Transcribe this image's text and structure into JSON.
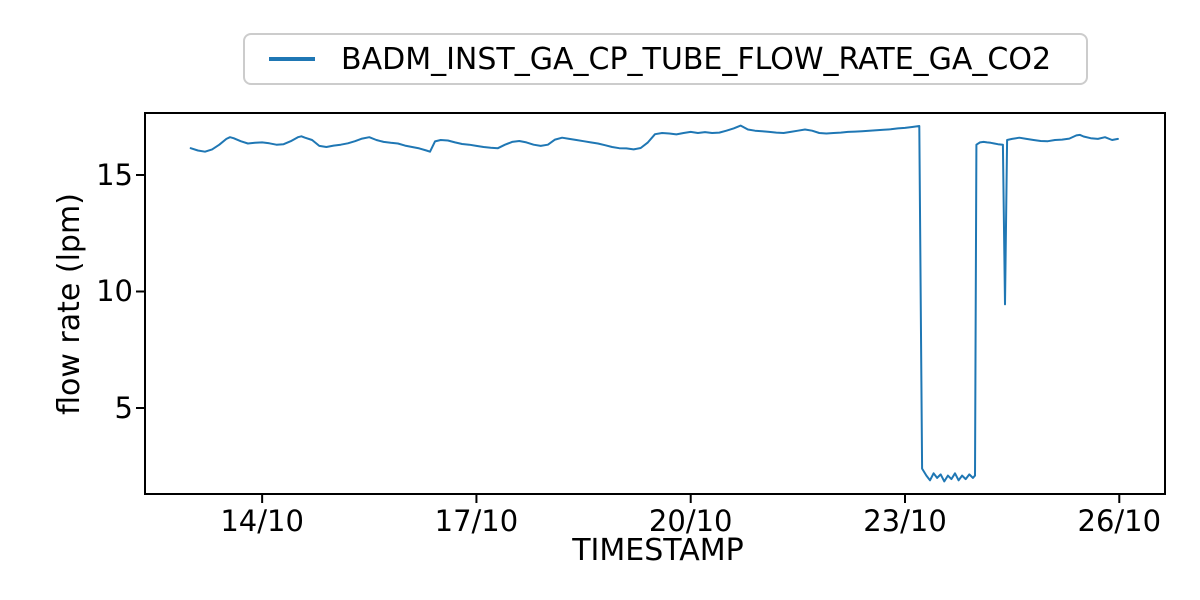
{
  "figure": {
    "background": "#ffffff",
    "legend": {
      "label": "BADM_INST_GA_CP_TUBE_FLOW_RATE_GA_CO2",
      "line_color": "#1f77b4",
      "border_color": "#cccccc",
      "position": "top-center, above plot"
    },
    "axis_color": "#000000"
  },
  "chart_data": {
    "type": "line",
    "title": "",
    "xlabel": "TIMESTAMP",
    "ylabel": "flow rate (lpm)",
    "legend_entries": [
      "BADM_INST_GA_CP_TUBE_FLOW_RATE_GA_CO2"
    ],
    "legend_position": "upper center, outside axes",
    "grid": false,
    "line_color": "#1f77b4",
    "x_unit": "day of October, labels formatted DD/10",
    "xlim_days": [
      12.36,
      26.64
    ],
    "ylim": [
      1.31,
      17.66
    ],
    "xticks": [
      {
        "day": 14,
        "label": "14/10"
      },
      {
        "day": 17,
        "label": "17/10"
      },
      {
        "day": 20,
        "label": "20/10"
      },
      {
        "day": 23,
        "label": "23/10"
      },
      {
        "day": 26,
        "label": "26/10"
      }
    ],
    "yticks": [
      {
        "value": 5,
        "label": "5"
      },
      {
        "value": 10,
        "label": "10"
      },
      {
        "value": 15,
        "label": "15"
      }
    ],
    "series": [
      {
        "name": "BADM_INST_GA_CP_TUBE_FLOW_RATE_GA_CO2",
        "points": [
          [
            13.0,
            16.15
          ],
          [
            13.1,
            16.05
          ],
          [
            13.2,
            16.0
          ],
          [
            13.3,
            16.1
          ],
          [
            13.4,
            16.3
          ],
          [
            13.5,
            16.55
          ],
          [
            13.55,
            16.62
          ],
          [
            13.6,
            16.58
          ],
          [
            13.7,
            16.45
          ],
          [
            13.8,
            16.35
          ],
          [
            13.9,
            16.38
          ],
          [
            14.0,
            16.4
          ],
          [
            14.1,
            16.36
          ],
          [
            14.2,
            16.3
          ],
          [
            14.3,
            16.32
          ],
          [
            14.4,
            16.45
          ],
          [
            14.5,
            16.62
          ],
          [
            14.55,
            16.66
          ],
          [
            14.6,
            16.6
          ],
          [
            14.7,
            16.5
          ],
          [
            14.8,
            16.25
          ],
          [
            14.9,
            16.2
          ],
          [
            15.0,
            16.26
          ],
          [
            15.1,
            16.3
          ],
          [
            15.2,
            16.36
          ],
          [
            15.3,
            16.45
          ],
          [
            15.4,
            16.56
          ],
          [
            15.5,
            16.62
          ],
          [
            15.6,
            16.5
          ],
          [
            15.7,
            16.42
          ],
          [
            15.8,
            16.38
          ],
          [
            15.9,
            16.35
          ],
          [
            16.0,
            16.26
          ],
          [
            16.1,
            16.2
          ],
          [
            16.2,
            16.14
          ],
          [
            16.3,
            16.05
          ],
          [
            16.35,
            16.0
          ],
          [
            16.42,
            16.44
          ],
          [
            16.5,
            16.5
          ],
          [
            16.6,
            16.48
          ],
          [
            16.7,
            16.4
          ],
          [
            16.8,
            16.33
          ],
          [
            16.9,
            16.3
          ],
          [
            17.0,
            16.25
          ],
          [
            17.1,
            16.2
          ],
          [
            17.2,
            16.17
          ],
          [
            17.3,
            16.15
          ],
          [
            17.4,
            16.3
          ],
          [
            17.5,
            16.42
          ],
          [
            17.6,
            16.46
          ],
          [
            17.7,
            16.4
          ],
          [
            17.8,
            16.3
          ],
          [
            17.9,
            16.25
          ],
          [
            18.0,
            16.3
          ],
          [
            18.1,
            16.52
          ],
          [
            18.2,
            16.6
          ],
          [
            18.3,
            16.55
          ],
          [
            18.4,
            16.5
          ],
          [
            18.5,
            16.45
          ],
          [
            18.6,
            16.4
          ],
          [
            18.7,
            16.35
          ],
          [
            18.8,
            16.28
          ],
          [
            18.9,
            16.2
          ],
          [
            19.0,
            16.15
          ],
          [
            19.1,
            16.14
          ],
          [
            19.2,
            16.1
          ],
          [
            19.3,
            16.16
          ],
          [
            19.4,
            16.4
          ],
          [
            19.5,
            16.75
          ],
          [
            19.6,
            16.8
          ],
          [
            19.7,
            16.78
          ],
          [
            19.8,
            16.74
          ],
          [
            19.9,
            16.8
          ],
          [
            20.0,
            16.85
          ],
          [
            20.1,
            16.8
          ],
          [
            20.2,
            16.84
          ],
          [
            20.3,
            16.8
          ],
          [
            20.4,
            16.82
          ],
          [
            20.5,
            16.9
          ],
          [
            20.6,
            17.0
          ],
          [
            20.7,
            17.12
          ],
          [
            20.8,
            16.95
          ],
          [
            20.9,
            16.9
          ],
          [
            21.0,
            16.88
          ],
          [
            21.1,
            16.85
          ],
          [
            21.2,
            16.82
          ],
          [
            21.3,
            16.8
          ],
          [
            21.4,
            16.85
          ],
          [
            21.5,
            16.9
          ],
          [
            21.6,
            16.95
          ],
          [
            21.7,
            16.9
          ],
          [
            21.8,
            16.8
          ],
          [
            21.9,
            16.78
          ],
          [
            22.0,
            16.8
          ],
          [
            22.1,
            16.82
          ],
          [
            22.2,
            16.85
          ],
          [
            22.3,
            16.86
          ],
          [
            22.4,
            16.88
          ],
          [
            22.5,
            16.9
          ],
          [
            22.6,
            16.92
          ],
          [
            22.7,
            16.94
          ],
          [
            22.8,
            16.96
          ],
          [
            22.9,
            17.0
          ],
          [
            23.0,
            17.02
          ],
          [
            23.1,
            17.06
          ],
          [
            23.2,
            17.1
          ],
          [
            23.24,
            2.4
          ],
          [
            23.3,
            2.1
          ],
          [
            23.35,
            1.9
          ],
          [
            23.4,
            2.2
          ],
          [
            23.45,
            2.0
          ],
          [
            23.5,
            2.15
          ],
          [
            23.55,
            1.85
          ],
          [
            23.6,
            2.1
          ],
          [
            23.65,
            1.95
          ],
          [
            23.7,
            2.2
          ],
          [
            23.75,
            1.9
          ],
          [
            23.8,
            2.1
          ],
          [
            23.85,
            1.95
          ],
          [
            23.9,
            2.15
          ],
          [
            23.95,
            2.0
          ],
          [
            23.98,
            2.1
          ],
          [
            24.0,
            16.3
          ],
          [
            24.05,
            16.4
          ],
          [
            24.1,
            16.42
          ],
          [
            24.15,
            16.4
          ],
          [
            24.2,
            16.38
          ],
          [
            24.25,
            16.35
          ],
          [
            24.3,
            16.32
          ],
          [
            24.37,
            16.3
          ],
          [
            24.4,
            9.45
          ],
          [
            24.43,
            16.5
          ],
          [
            24.5,
            16.55
          ],
          [
            24.6,
            16.6
          ],
          [
            24.7,
            16.55
          ],
          [
            24.8,
            16.5
          ],
          [
            24.9,
            16.46
          ],
          [
            25.0,
            16.45
          ],
          [
            25.1,
            16.5
          ],
          [
            25.2,
            16.52
          ],
          [
            25.3,
            16.56
          ],
          [
            25.4,
            16.7
          ],
          [
            25.45,
            16.72
          ],
          [
            25.5,
            16.65
          ],
          [
            25.6,
            16.58
          ],
          [
            25.7,
            16.55
          ],
          [
            25.8,
            16.62
          ],
          [
            25.9,
            16.5
          ],
          [
            25.98,
            16.55
          ]
        ]
      }
    ]
  }
}
